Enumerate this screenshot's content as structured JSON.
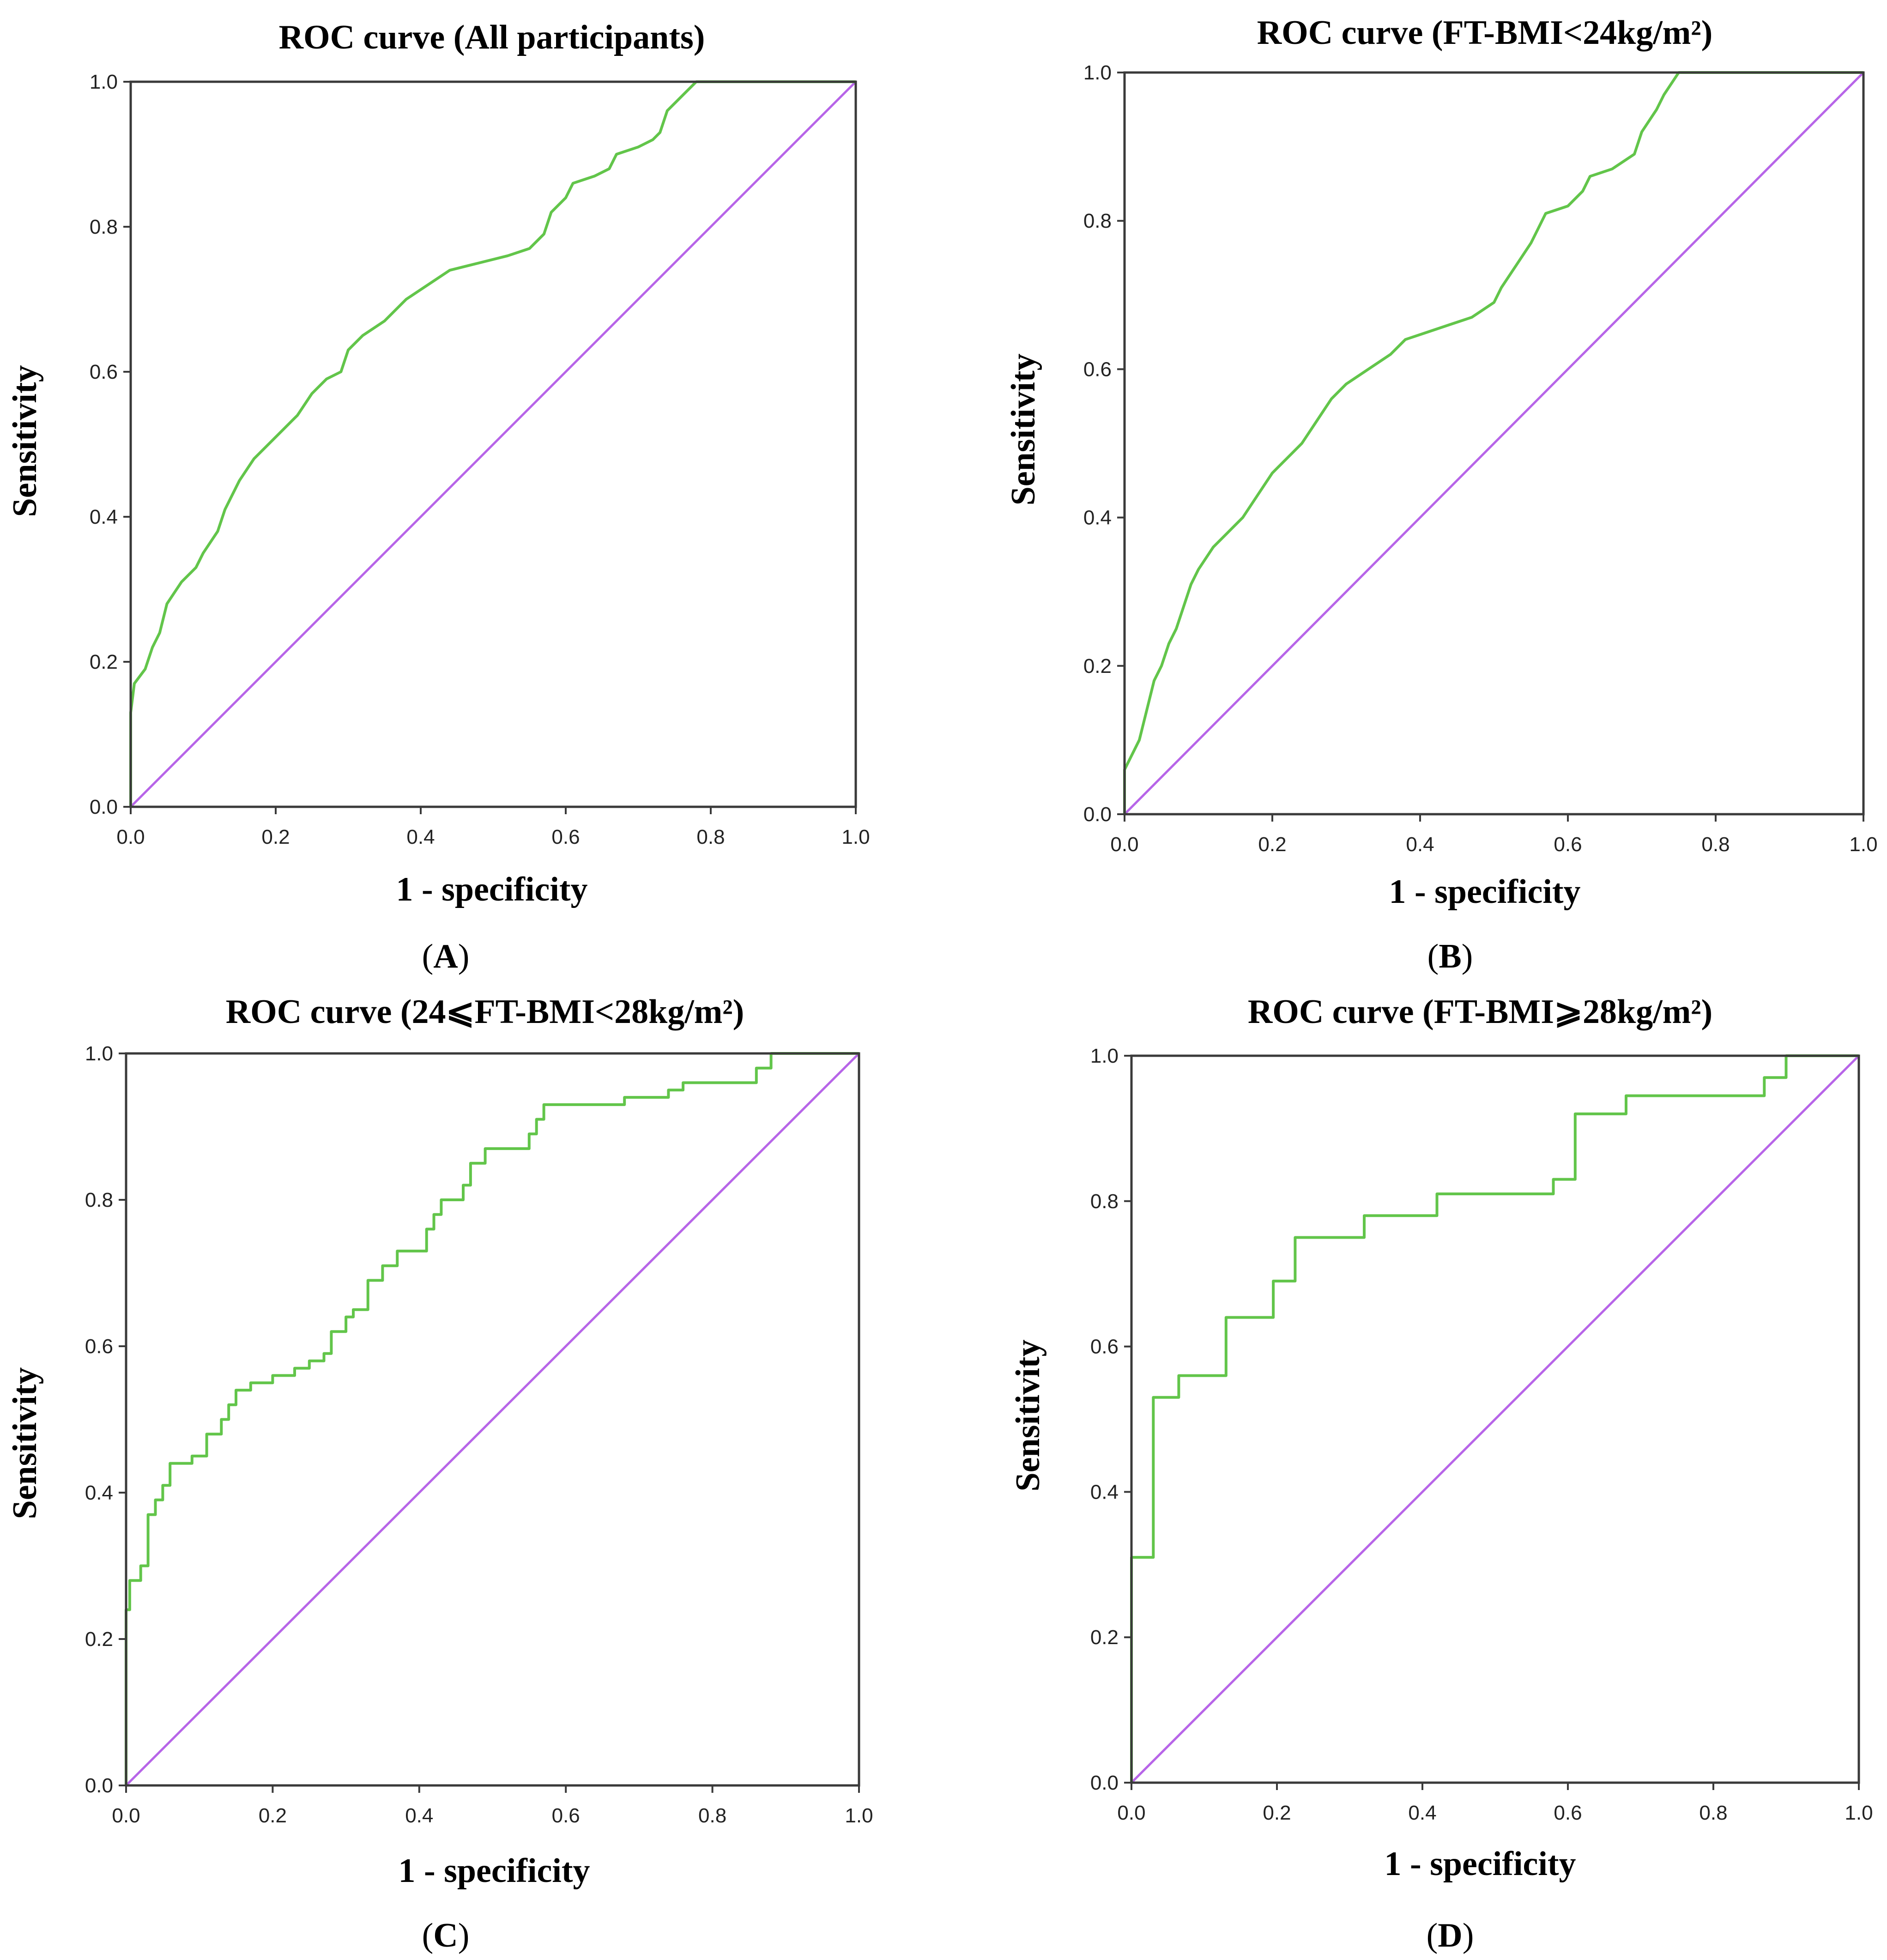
{
  "colors": {
    "roc_curve": "#62c54a",
    "reference_line": "#b765e8",
    "frame": "#3a3a3a"
  },
  "chart_data": [
    {
      "id": "A",
      "type": "line",
      "title": "ROC curve (All participants)",
      "xlabel": "1 - specificity",
      "ylabel": "Sensitivity",
      "caption": "A",
      "xlim": [
        0,
        1
      ],
      "ylim": [
        0,
        1
      ],
      "x_ticks": [
        "0.0",
        "0.2",
        "0.4",
        "0.6",
        "0.8",
        "1.0"
      ],
      "y_ticks": [
        "0.0",
        "0.2",
        "0.4",
        "0.6",
        "0.8",
        "1.0"
      ],
      "grid": false,
      "series": [
        {
          "step": false,
          "points": [
            [
              0,
              0
            ],
            [
              0,
              0.13
            ],
            [
              0.005,
              0.17
            ],
            [
              0.02,
              0.19
            ],
            [
              0.03,
              0.22
            ],
            [
              0.04,
              0.24
            ],
            [
              0.05,
              0.28
            ],
            [
              0.07,
              0.31
            ],
            [
              0.09,
              0.33
            ],
            [
              0.1,
              0.35
            ],
            [
              0.12,
              0.38
            ],
            [
              0.13,
              0.41
            ],
            [
              0.14,
              0.43
            ],
            [
              0.15,
              0.45
            ],
            [
              0.17,
              0.48
            ],
            [
              0.19,
              0.5
            ],
            [
              0.21,
              0.52
            ],
            [
              0.23,
              0.54
            ],
            [
              0.25,
              0.57
            ],
            [
              0.27,
              0.59
            ],
            [
              0.29,
              0.6
            ],
            [
              0.3,
              0.63
            ],
            [
              0.32,
              0.65
            ],
            [
              0.35,
              0.67
            ],
            [
              0.38,
              0.7
            ],
            [
              0.41,
              0.72
            ],
            [
              0.44,
              0.74
            ],
            [
              0.48,
              0.75
            ],
            [
              0.52,
              0.76
            ],
            [
              0.55,
              0.77
            ],
            [
              0.57,
              0.79
            ],
            [
              0.58,
              0.82
            ],
            [
              0.6,
              0.84
            ],
            [
              0.61,
              0.86
            ],
            [
              0.64,
              0.87
            ],
            [
              0.66,
              0.88
            ],
            [
              0.67,
              0.9
            ],
            [
              0.7,
              0.91
            ],
            [
              0.72,
              0.92
            ],
            [
              0.73,
              0.93
            ],
            [
              0.74,
              0.96
            ],
            [
              0.76,
              0.98
            ],
            [
              0.78,
              1.0
            ],
            [
              1.0,
              1.0
            ]
          ]
        },
        {
          "step": false,
          "points": [
            [
              0,
              0
            ],
            [
              1,
              1
            ]
          ]
        }
      ]
    },
    {
      "id": "B",
      "type": "line",
      "title": "ROC curve (FT-BMI<24kg/m²)",
      "xlabel": "1 - specificity",
      "ylabel": "Sensitivity",
      "caption": "B",
      "xlim": [
        0,
        1
      ],
      "ylim": [
        0,
        1
      ],
      "x_ticks": [
        "0.0",
        "0.2",
        "0.4",
        "0.6",
        "0.8",
        "1.0"
      ],
      "y_ticks": [
        "0.0",
        "0.2",
        "0.4",
        "0.6",
        "0.8",
        "1.0"
      ],
      "grid": false,
      "series": [
        {
          "step": false,
          "points": [
            [
              0,
              0
            ],
            [
              0,
              0.06
            ],
            [
              0.01,
              0.08
            ],
            [
              0.02,
              0.1
            ],
            [
              0.03,
              0.14
            ],
            [
              0.04,
              0.18
            ],
            [
              0.05,
              0.2
            ],
            [
              0.06,
              0.23
            ],
            [
              0.07,
              0.25
            ],
            [
              0.08,
              0.28
            ],
            [
              0.09,
              0.31
            ],
            [
              0.1,
              0.33
            ],
            [
              0.12,
              0.36
            ],
            [
              0.14,
              0.38
            ],
            [
              0.16,
              0.4
            ],
            [
              0.18,
              0.43
            ],
            [
              0.2,
              0.46
            ],
            [
              0.22,
              0.48
            ],
            [
              0.24,
              0.5
            ],
            [
              0.26,
              0.53
            ],
            [
              0.28,
              0.56
            ],
            [
              0.3,
              0.58
            ],
            [
              0.33,
              0.6
            ],
            [
              0.36,
              0.62
            ],
            [
              0.38,
              0.64
            ],
            [
              0.41,
              0.65
            ],
            [
              0.44,
              0.66
            ],
            [
              0.47,
              0.67
            ],
            [
              0.5,
              0.69
            ],
            [
              0.51,
              0.71
            ],
            [
              0.53,
              0.74
            ],
            [
              0.55,
              0.77
            ],
            [
              0.56,
              0.79
            ],
            [
              0.57,
              0.81
            ],
            [
              0.6,
              0.82
            ],
            [
              0.62,
              0.84
            ],
            [
              0.63,
              0.86
            ],
            [
              0.66,
              0.87
            ],
            [
              0.69,
              0.89
            ],
            [
              0.7,
              0.92
            ],
            [
              0.72,
              0.95
            ],
            [
              0.73,
              0.97
            ],
            [
              0.75,
              1.0
            ],
            [
              1.0,
              1.0
            ]
          ]
        },
        {
          "step": false,
          "points": [
            [
              0,
              0
            ],
            [
              1,
              1
            ]
          ]
        }
      ]
    },
    {
      "id": "C",
      "type": "line",
      "title": "ROC curve (24⩽FT-BMI<28kg/m²)",
      "xlabel": "1 - specificity",
      "ylabel": "Sensitivity",
      "caption": "C",
      "xlim": [
        0,
        1
      ],
      "ylim": [
        0,
        1
      ],
      "x_ticks": [
        "0.0",
        "0.2",
        "0.4",
        "0.6",
        "0.8",
        "1.0"
      ],
      "y_ticks": [
        "0.0",
        "0.2",
        "0.4",
        "0.6",
        "0.8",
        "1.0"
      ],
      "grid": false,
      "series": [
        {
          "step": true,
          "points": [
            [
              0,
              0
            ],
            [
              0,
              0.24
            ],
            [
              0.005,
              0.24
            ],
            [
              0.005,
              0.28
            ],
            [
              0.02,
              0.28
            ],
            [
              0.02,
              0.3
            ],
            [
              0.03,
              0.3
            ],
            [
              0.03,
              0.37
            ],
            [
              0.04,
              0.37
            ],
            [
              0.04,
              0.39
            ],
            [
              0.05,
              0.39
            ],
            [
              0.05,
              0.41
            ],
            [
              0.06,
              0.41
            ],
            [
              0.06,
              0.44
            ],
            [
              0.09,
              0.44
            ],
            [
              0.09,
              0.45
            ],
            [
              0.11,
              0.45
            ],
            [
              0.11,
              0.48
            ],
            [
              0.13,
              0.48
            ],
            [
              0.13,
              0.5
            ],
            [
              0.14,
              0.5
            ],
            [
              0.14,
              0.52
            ],
            [
              0.15,
              0.52
            ],
            [
              0.15,
              0.54
            ],
            [
              0.17,
              0.54
            ],
            [
              0.17,
              0.55
            ],
            [
              0.2,
              0.55
            ],
            [
              0.2,
              0.56
            ],
            [
              0.23,
              0.56
            ],
            [
              0.23,
              0.57
            ],
            [
              0.25,
              0.57
            ],
            [
              0.25,
              0.58
            ],
            [
              0.27,
              0.58
            ],
            [
              0.27,
              0.59
            ],
            [
              0.28,
              0.59
            ],
            [
              0.28,
              0.62
            ],
            [
              0.3,
              0.62
            ],
            [
              0.3,
              0.64
            ],
            [
              0.31,
              0.64
            ],
            [
              0.31,
              0.65
            ],
            [
              0.33,
              0.65
            ],
            [
              0.33,
              0.69
            ],
            [
              0.35,
              0.69
            ],
            [
              0.35,
              0.71
            ],
            [
              0.37,
              0.71
            ],
            [
              0.37,
              0.73
            ],
            [
              0.41,
              0.73
            ],
            [
              0.41,
              0.76
            ],
            [
              0.42,
              0.76
            ],
            [
              0.42,
              0.78
            ],
            [
              0.43,
              0.78
            ],
            [
              0.43,
              0.8
            ],
            [
              0.46,
              0.8
            ],
            [
              0.46,
              0.82
            ],
            [
              0.47,
              0.82
            ],
            [
              0.47,
              0.85
            ],
            [
              0.49,
              0.85
            ],
            [
              0.49,
              0.87
            ],
            [
              0.55,
              0.87
            ],
            [
              0.55,
              0.89
            ],
            [
              0.56,
              0.89
            ],
            [
              0.56,
              0.91
            ],
            [
              0.57,
              0.91
            ],
            [
              0.57,
              0.93
            ],
            [
              0.68,
              0.93
            ],
            [
              0.68,
              0.94
            ],
            [
              0.74,
              0.94
            ],
            [
              0.74,
              0.95
            ],
            [
              0.76,
              0.95
            ],
            [
              0.76,
              0.96
            ],
            [
              0.86,
              0.96
            ],
            [
              0.86,
              0.98
            ],
            [
              0.88,
              0.98
            ],
            [
              0.88,
              1.0
            ],
            [
              1.0,
              1.0
            ]
          ]
        },
        {
          "step": false,
          "points": [
            [
              0,
              0
            ],
            [
              1,
              1
            ]
          ]
        }
      ]
    },
    {
      "id": "D",
      "type": "line",
      "title": "ROC curve (FT-BMI⩾28kg/m²)",
      "xlabel": "1 - specificity",
      "ylabel": "Sensitivity",
      "caption": "D",
      "xlim": [
        0,
        1
      ],
      "ylim": [
        0,
        1
      ],
      "x_ticks": [
        "0.0",
        "0.2",
        "0.4",
        "0.6",
        "0.8",
        "1.0"
      ],
      "y_ticks": [
        "0.0",
        "0.2",
        "0.4",
        "0.6",
        "0.8",
        "1.0"
      ],
      "grid": false,
      "series": [
        {
          "step": true,
          "points": [
            [
              0,
              0
            ],
            [
              0,
              0.31
            ],
            [
              0.03,
              0.31
            ],
            [
              0.03,
              0.53
            ],
            [
              0.065,
              0.53
            ],
            [
              0.065,
              0.56
            ],
            [
              0.13,
              0.56
            ],
            [
              0.13,
              0.64
            ],
            [
              0.195,
              0.64
            ],
            [
              0.195,
              0.69
            ],
            [
              0.225,
              0.69
            ],
            [
              0.225,
              0.75
            ],
            [
              0.32,
              0.75
            ],
            [
              0.32,
              0.78
            ],
            [
              0.42,
              0.78
            ],
            [
              0.42,
              0.81
            ],
            [
              0.58,
              0.81
            ],
            [
              0.58,
              0.83
            ],
            [
              0.61,
              0.83
            ],
            [
              0.61,
              0.92
            ],
            [
              0.68,
              0.92
            ],
            [
              0.68,
              0.945
            ],
            [
              0.87,
              0.945
            ],
            [
              0.87,
              0.97
            ],
            [
              0.9,
              0.97
            ],
            [
              0.9,
              1.0
            ],
            [
              1.0,
              1.0
            ]
          ]
        },
        {
          "step": false,
          "points": [
            [
              0,
              0
            ],
            [
              1,
              1
            ]
          ]
        }
      ]
    }
  ]
}
